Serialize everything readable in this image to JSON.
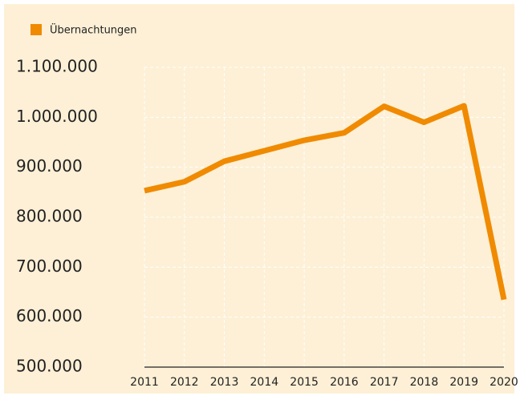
{
  "chart_data": {
    "type": "line",
    "categories": [
      "2011",
      "2012",
      "2013",
      "2014",
      "2015",
      "2016",
      "2017",
      "2018",
      "2019",
      "2020"
    ],
    "series": [
      {
        "name": "Übernachtungen",
        "color": "#f08a00",
        "values": [
          853000,
          871000,
          912000,
          933000,
          954000,
          969000,
          1022000,
          990000,
          1023000,
          635000
        ]
      }
    ],
    "ylim": [
      500000,
      1100000
    ],
    "yticks": [
      {
        "value": 500000,
        "label": "500.000"
      },
      {
        "value": 600000,
        "label": "600.000"
      },
      {
        "value": 700000,
        "label": "700.000"
      },
      {
        "value": 800000,
        "label": "800.000"
      },
      {
        "value": 900000,
        "label": "900.000"
      },
      {
        "value": 1000000,
        "label": "1.000.000"
      },
      {
        "value": 1100000,
        "label": "1.100.000"
      }
    ],
    "grid": true,
    "legend": "top-left",
    "background": "#fdf0d6"
  }
}
